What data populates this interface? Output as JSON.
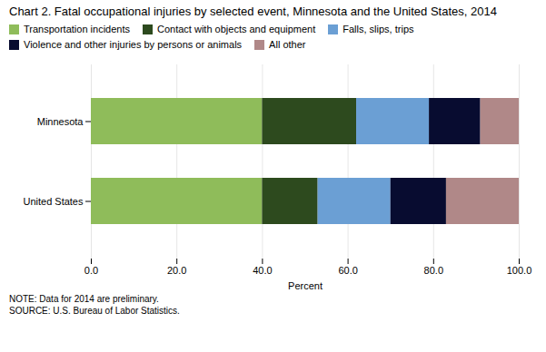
{
  "chart_data": {
    "type": "bar",
    "title": "Chart 2.  Fatal occupational injuries by selected event, Minnesota and the United States, 2014",
    "orientation": "horizontal",
    "stacked": true,
    "categories": [
      "United States",
      "Minnesota"
    ],
    "series": [
      {
        "name": "Transportation incidents",
        "color": "#8fbc5a",
        "values": [
          40.0,
          40.0
        ]
      },
      {
        "name": "Contact with objects and equipment",
        "color": "#2d4a1e",
        "values": [
          13.0,
          22.0
        ]
      },
      {
        "name": "Falls, slips, trips",
        "color": "#6b9fd4",
        "values": [
          17.0,
          17.0
        ]
      },
      {
        "name": "Violence and other injuries by persons or animals",
        "color": "#080c30",
        "values": [
          13.0,
          12.0
        ]
      },
      {
        "name": "All other",
        "color": "#b08888",
        "values": [
          17.0,
          9.0
        ]
      }
    ],
    "xlim": [
      0,
      100
    ],
    "xticks": [
      {
        "value": 0,
        "label": "0.0"
      },
      {
        "value": 20,
        "label": "20.0"
      },
      {
        "value": 40,
        "label": "40.0"
      },
      {
        "value": 60,
        "label": "60.0"
      },
      {
        "value": 80,
        "label": "80.0"
      },
      {
        "value": 100,
        "label": "100.0"
      }
    ],
    "xlabel": "Percent",
    "grid": true,
    "legend": "top",
    "note": "NOTE: Data for 2014 are preliminary.\nSOURCE: U.S. Bureau of Labor Statistics."
  }
}
